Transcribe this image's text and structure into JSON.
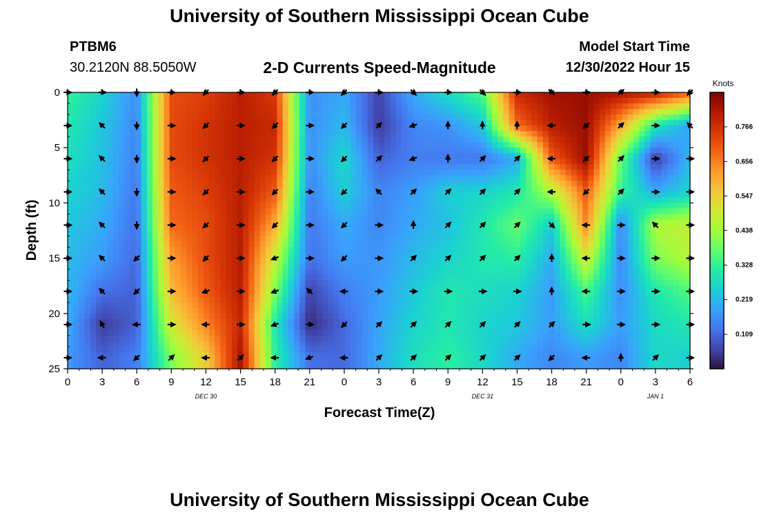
{
  "header": {
    "title": "University of Southern Mississippi Ocean Cube",
    "station_id": "PTBM6",
    "station_coords": "30.2120N  88.5050W",
    "product": "2-D Currents Speed-Magnitude",
    "model_start_label": "Model Start Time",
    "model_start_value": "12/30/2022 Hour 15"
  },
  "footer": {
    "title": "University of Southern Mississippi Ocean Cube"
  },
  "colors": {
    "ramp": [
      "#30123b",
      "#4145ab",
      "#4675ed",
      "#39a2fc",
      "#1bcfd4",
      "#24eca6",
      "#61fc6c",
      "#a4fc3b",
      "#d1e834",
      "#f3c63a",
      "#fe9b2d",
      "#f36315",
      "#d93806",
      "#b11901",
      "#7a0403"
    ],
    "arrow": "#000000"
  },
  "chart_data": {
    "type": "heatmap",
    "xlabel": "Forecast Time(Z)",
    "ylabel": "Depth (ft)",
    "x_ticks": [
      "0",
      "3",
      "6",
      "9",
      "12",
      "15",
      "18",
      "21",
      "0",
      "3",
      "6",
      "9",
      "12",
      "15",
      "18",
      "21",
      "0",
      "3",
      "6"
    ],
    "date_labels": [
      {
        "label": "DEC 30",
        "hour": 12
      },
      {
        "label": "DEC 31",
        "hour": 36
      },
      {
        "label": "JAN 1",
        "hour": 51
      }
    ],
    "xlim": [
      0,
      54
    ],
    "y_ticks": [
      "0",
      "5",
      "10",
      "15",
      "20",
      "25"
    ],
    "ylim": [
      0,
      25
    ],
    "colorbar": {
      "title": "Knots",
      "range": [
        0,
        0.875
      ],
      "ticks": [
        "0.766",
        "0.656",
        "0.547",
        "0.438",
        "0.328",
        "0.219",
        "0.109"
      ]
    },
    "arrow_hours": [
      0,
      3,
      6,
      9,
      12,
      15,
      18,
      21,
      24,
      27,
      30,
      33,
      36,
      39,
      42,
      45,
      48,
      51,
      54
    ],
    "arrow_depths": [
      0,
      3,
      6,
      9,
      12,
      15,
      18,
      21,
      24
    ],
    "speed_hours": [
      0,
      3,
      6,
      9,
      12,
      15,
      18,
      21,
      24,
      27,
      30,
      33,
      36,
      39,
      42,
      45,
      48,
      51,
      54
    ],
    "speed_depths": [
      0,
      3,
      6,
      9,
      12,
      15,
      18,
      21,
      24
    ],
    "speed_knots": [
      [
        0.33,
        0.26,
        0.16,
        0.72,
        0.74,
        0.8,
        0.75,
        0.16,
        0.2,
        0.06,
        0.2,
        0.28,
        0.36,
        0.78,
        0.83,
        0.84,
        0.82,
        0.8,
        0.7
      ],
      [
        0.3,
        0.24,
        0.15,
        0.72,
        0.76,
        0.8,
        0.78,
        0.16,
        0.22,
        0.05,
        0.15,
        0.17,
        0.24,
        0.68,
        0.8,
        0.84,
        0.6,
        0.3,
        0.18
      ],
      [
        0.28,
        0.23,
        0.14,
        0.72,
        0.76,
        0.8,
        0.76,
        0.16,
        0.27,
        0.1,
        0.14,
        0.13,
        0.13,
        0.2,
        0.7,
        0.84,
        0.38,
        0.05,
        0.22
      ],
      [
        0.26,
        0.22,
        0.13,
        0.7,
        0.74,
        0.8,
        0.7,
        0.14,
        0.25,
        0.15,
        0.18,
        0.25,
        0.26,
        0.3,
        0.45,
        0.7,
        0.33,
        0.2,
        0.26
      ],
      [
        0.24,
        0.2,
        0.12,
        0.68,
        0.72,
        0.8,
        0.6,
        0.13,
        0.2,
        0.15,
        0.2,
        0.23,
        0.3,
        0.38,
        0.25,
        0.65,
        0.15,
        0.45,
        0.48
      ],
      [
        0.22,
        0.18,
        0.11,
        0.62,
        0.72,
        0.8,
        0.48,
        0.12,
        0.18,
        0.17,
        0.22,
        0.26,
        0.3,
        0.32,
        0.2,
        0.5,
        0.15,
        0.4,
        0.46
      ],
      [
        0.22,
        0.12,
        0.1,
        0.58,
        0.7,
        0.8,
        0.4,
        0.06,
        0.14,
        0.18,
        0.24,
        0.3,
        0.28,
        0.26,
        0.18,
        0.35,
        0.16,
        0.3,
        0.36
      ],
      [
        0.2,
        0.05,
        0.1,
        0.5,
        0.65,
        0.78,
        0.3,
        0.03,
        0.11,
        0.19,
        0.26,
        0.3,
        0.26,
        0.24,
        0.18,
        0.28,
        0.18,
        0.27,
        0.3
      ],
      [
        0.18,
        0.1,
        0.14,
        0.4,
        0.55,
        0.82,
        0.32,
        0.12,
        0.11,
        0.2,
        0.28,
        0.32,
        0.27,
        0.2,
        0.15,
        0.18,
        0.15,
        0.27,
        0.25
      ]
    ],
    "arrow_angles_deg": [
      [
        0,
        0,
        270,
        0,
        225,
        0,
        225,
        0,
        225,
        0,
        315,
        0,
        315,
        0,
        135,
        0,
        45,
        0,
        225
      ],
      [
        0,
        135,
        270,
        0,
        225,
        0,
        225,
        0,
        225,
        45,
        200,
        90,
        90,
        90,
        180,
        225,
        45,
        0,
        135
      ],
      [
        0,
        135,
        270,
        0,
        225,
        0,
        225,
        0,
        225,
        45,
        200,
        90,
        45,
        45,
        180,
        225,
        45,
        0,
        0
      ],
      [
        0,
        135,
        270,
        0,
        225,
        0,
        225,
        0,
        225,
        135,
        45,
        45,
        45,
        45,
        180,
        225,
        45,
        0,
        0
      ],
      [
        0,
        135,
        270,
        0,
        225,
        0,
        225,
        0,
        225,
        0,
        90,
        45,
        45,
        45,
        315,
        180,
        0,
        135,
        0
      ],
      [
        0,
        135,
        225,
        0,
        225,
        0,
        200,
        0,
        225,
        0,
        45,
        45,
        45,
        45,
        90,
        180,
        0,
        0,
        0
      ],
      [
        0,
        135,
        225,
        0,
        200,
        0,
        200,
        135,
        180,
        0,
        0,
        0,
        0,
        0,
        90,
        180,
        0,
        0,
        0
      ],
      [
        0,
        120,
        180,
        0,
        180,
        0,
        200,
        0,
        225,
        45,
        45,
        45,
        45,
        45,
        45,
        0,
        0,
        0,
        0
      ],
      [
        0,
        180,
        225,
        45,
        180,
        45,
        180,
        200,
        180,
        45,
        45,
        45,
        45,
        45,
        225,
        180,
        90,
        45,
        0
      ]
    ]
  }
}
